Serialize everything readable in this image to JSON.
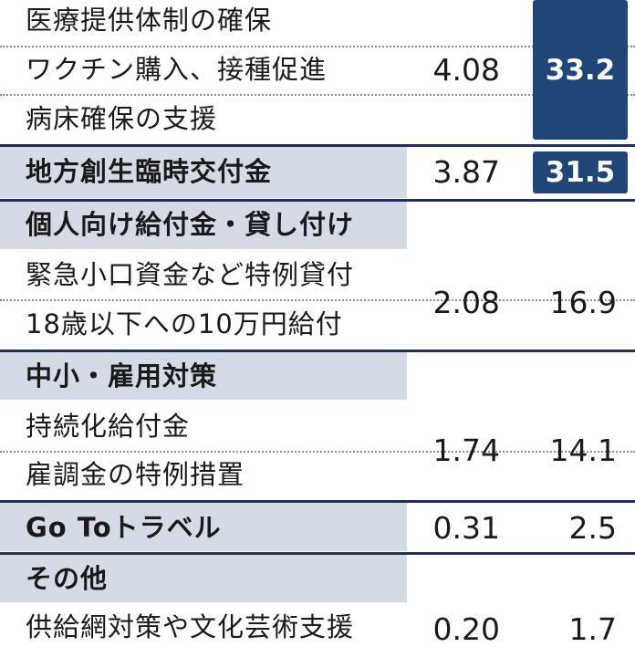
{
  "rows": [
    {
      "items": [
        "医療提供体制の確保",
        "ワクチン購入、接種促進",
        "病床確保の支援"
      ],
      "value1": "4.08",
      "value2": "33.2",
      "highlight": true
    },
    {
      "items": [
        "地方創生臨時交付金"
      ],
      "value1": "3.87",
      "value2": "31.5",
      "highlight": true
    },
    {
      "category": "個人向け給付金・貸し付け",
      "items": [
        "緊急小口資金など特例貸付",
        "18歳以下への10万円給付"
      ],
      "value1": "2.08",
      "value2": "16.9"
    },
    {
      "category": "中小・雇用対策",
      "items": [
        "持続化給付金",
        "雇調金の特例措置"
      ],
      "value1": "1.74",
      "value2": "14.1"
    },
    {
      "items": [
        "Go Toトラベル"
      ],
      "value1": "0.31",
      "value2": "2.5"
    },
    {
      "category": "その他",
      "items": [
        "供給網対策や文化芸術支援"
      ],
      "value1": "0.20",
      "value2": "1.7"
    }
  ],
  "colors": {
    "band": "#d5dbe6",
    "bar": "#1f4677",
    "rule": "#1f3256"
  }
}
